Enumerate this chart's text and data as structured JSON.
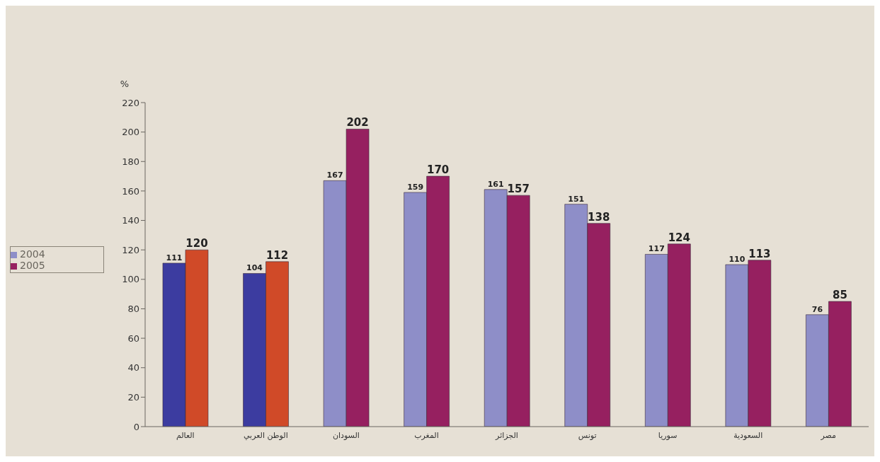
{
  "chart_data": {
    "type": "bar",
    "ylabel": "%",
    "categories": [
      "العالم",
      "الوطن العربي",
      "السودان",
      "المغرب",
      "الجزائر",
      "تونس",
      "سوريا",
      "السعودية",
      "مصر"
    ],
    "series": [
      {
        "name": "2004",
        "color": "#8e8ec8",
        "colors": [
          "#3c3ca0",
          "#3c3ca0",
          "#8e8ec8",
          "#8e8ec8",
          "#8e8ec8",
          "#8e8ec8",
          "#8e8ec8",
          "#8e8ec8",
          "#8e8ec8"
        ],
        "values": [
          111,
          104,
          167,
          159,
          161,
          151,
          117,
          110,
          76
        ]
      },
      {
        "name": "2005",
        "color": "#962060",
        "colors": [
          "#d04a28",
          "#d04a28",
          "#962060",
          "#962060",
          "#962060",
          "#962060",
          "#962060",
          "#962060",
          "#962060"
        ],
        "values": [
          120,
          112,
          202,
          170,
          157,
          138,
          124,
          113,
          85
        ]
      }
    ],
    "ylim": [
      0,
      220
    ],
    "yticks": [
      0,
      20,
      40,
      60,
      80,
      100,
      120,
      140,
      160,
      180,
      200,
      220
    ],
    "legend": "left",
    "data_labels": true
  }
}
